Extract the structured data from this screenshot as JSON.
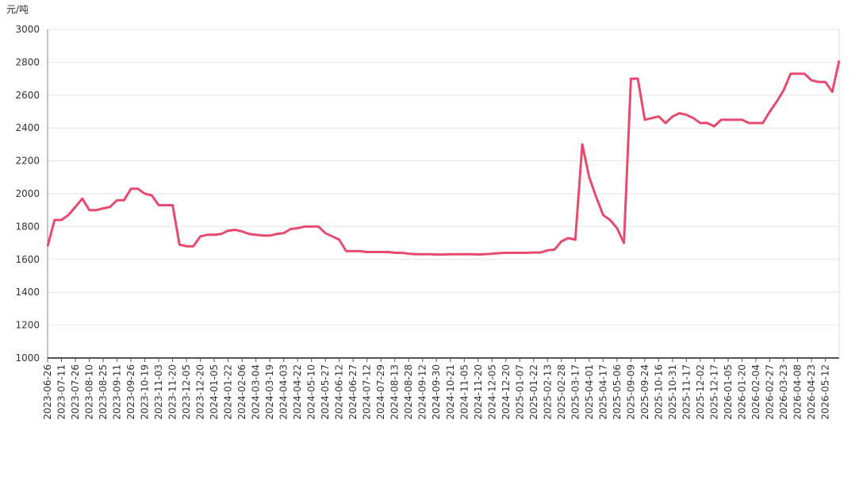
{
  "chart_data": {
    "type": "line",
    "y_label": "元/吨",
    "categories": [
      "2023-06-26",
      null,
      "2023-07-11",
      null,
      "2023-07-26",
      null,
      "2023-08-10",
      null,
      "2023-08-25",
      null,
      "2023-09-11",
      null,
      "2023-09-26",
      null,
      "2023-10-19",
      null,
      "2023-11-03",
      null,
      "2023-11-20",
      null,
      "2023-12-05",
      null,
      "2023-12-20",
      null,
      "2024-01-05",
      null,
      "2024-01-22",
      null,
      "2024-02-06",
      null,
      "2024-03-04",
      null,
      "2024-03-19",
      null,
      "2024-04-03",
      null,
      "2024-04-22",
      null,
      "2024-05-10",
      null,
      "2024-05-27",
      null,
      "2024-06-12",
      null,
      "2024-06-27",
      null,
      "2024-07-12",
      null,
      "2024-07-29",
      null,
      "2024-08-13",
      null,
      "2024-08-28",
      null,
      "2024-09-12",
      null,
      "2024-09-30",
      null,
      "2024-10-21",
      null,
      "2024-11-05",
      null,
      "2024-11-20",
      null,
      "2024-12-05",
      null,
      "2024-12-20",
      null,
      "2025-01-07",
      null,
      "2025-01-22",
      null,
      "2025-02-13",
      null,
      "2025-02-28",
      null,
      "2025-03-17",
      null,
      "2025-04-01",
      null,
      "2025-04-17",
      null,
      "2025-05-06",
      null,
      "2025-09-09",
      null,
      "2025-09-24",
      null,
      "2025-10-16",
      null,
      "2025-10-31",
      null,
      "2025-11-17",
      null,
      "2025-12-02",
      null,
      "2025-12-17",
      null,
      "2026-01-05",
      null,
      "2026-01-20",
      null,
      "2026-02-04",
      null,
      "2026-02-27",
      null,
      "2026-03-23",
      null,
      "2026-04-08",
      null,
      "2026-04-23",
      null,
      "2026-05-12",
      null,
      null
    ],
    "series": [
      {
        "color": "#e84a6f",
        "values": [
          1680,
          1840,
          1840,
          1870,
          1920,
          1970,
          1900,
          1900,
          1910,
          1920,
          1960,
          1960,
          2030,
          2030,
          2000,
          1990,
          1930,
          1930,
          1930,
          1690,
          1680,
          1680,
          1740,
          1750,
          1750,
          1755,
          1775,
          1780,
          1770,
          1755,
          1750,
          1745,
          1745,
          1755,
          1760,
          1785,
          1790,
          1800,
          1800,
          1800,
          1760,
          1740,
          1720,
          1650,
          1650,
          1650,
          1645,
          1645,
          1645,
          1645,
          1640,
          1640,
          1635,
          1632,
          1632,
          1632,
          1630,
          1630,
          1632,
          1632,
          1632,
          1632,
          1630,
          1632,
          1635,
          1638,
          1640,
          1640,
          1640,
          1640,
          1642,
          1642,
          1655,
          1660,
          1710,
          1730,
          1720,
          2300,
          2100,
          1980,
          1870,
          1840,
          1790,
          1700,
          2700,
          2700,
          2450,
          2460,
          2470,
          2430,
          2470,
          2490,
          2480,
          2460,
          2430,
          2430,
          2410,
          2450,
          2450,
          2450,
          2450,
          2430,
          2430,
          2430,
          2500,
          2560,
          2630,
          2730,
          2730,
          2730,
          2690,
          2680,
          2680,
          2620,
          2810
        ]
      }
    ],
    "ylim": [
      1000,
      3000
    ],
    "yticks": [
      1000,
      1200,
      1400,
      1600,
      1800,
      2000,
      2200,
      2400,
      2600,
      2800,
      3000
    ],
    "grid": true
  }
}
